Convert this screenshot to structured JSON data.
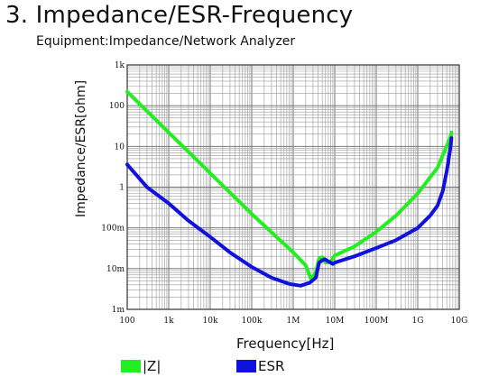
{
  "title": "3. Impedance/ESR-Frequency",
  "subtitle": "Equipment:Impedance/Network Analyzer",
  "chart_data": {
    "type": "line",
    "xlabel": "Frequency[Hz]",
    "ylabel": "Impedance/ESR[ohm]",
    "x_scale": "log",
    "y_scale": "log",
    "xlim": [
      100,
      10000000000
    ],
    "ylim": [
      0.001,
      1000
    ],
    "grid": true,
    "x_ticks": [
      {
        "value": 100,
        "label": "100"
      },
      {
        "value": 1000,
        "label": "1k"
      },
      {
        "value": 10000,
        "label": "10k"
      },
      {
        "value": 100000,
        "label": "100k"
      },
      {
        "value": 1000000,
        "label": "1M"
      },
      {
        "value": 10000000,
        "label": "10M"
      },
      {
        "value": 100000000,
        "label": "100M"
      },
      {
        "value": 1000000000,
        "label": "1G"
      },
      {
        "value": 10000000000,
        "label": "10G"
      }
    ],
    "y_ticks": [
      {
        "value": 0.001,
        "label": "1m"
      },
      {
        "value": 0.01,
        "label": "10m"
      },
      {
        "value": 0.1,
        "label": "100m"
      },
      {
        "value": 1,
        "label": "1"
      },
      {
        "value": 10,
        "label": "10"
      },
      {
        "value": 100,
        "label": "100"
      },
      {
        "value": 1000,
        "label": "1k"
      }
    ],
    "legend_position": "bottom",
    "series": [
      {
        "name": "|Z|",
        "color": "#22ee22",
        "points": [
          [
            100,
            220
          ],
          [
            1000,
            22
          ],
          [
            10000,
            2.2
          ],
          [
            100000,
            0.22
          ],
          [
            1000000,
            0.025
          ],
          [
            2000000,
            0.012
          ],
          [
            2700000,
            0.0055
          ],
          [
            3500000,
            0.008
          ],
          [
            4200000,
            0.018
          ],
          [
            5000000,
            0.019
          ],
          [
            6000000,
            0.014
          ],
          [
            8000000,
            0.015
          ],
          [
            10000000,
            0.021
          ],
          [
            30000000,
            0.035
          ],
          [
            100000000,
            0.08
          ],
          [
            300000000,
            0.2
          ],
          [
            1000000000,
            0.7
          ],
          [
            3000000000,
            3
          ],
          [
            6000000000,
            16
          ],
          [
            6500000000,
            22
          ]
        ]
      },
      {
        "name": "ESR",
        "color": "#1111dd",
        "points": [
          [
            100,
            3.6
          ],
          [
            300,
            1.0
          ],
          [
            1000,
            0.4
          ],
          [
            3000,
            0.15
          ],
          [
            10000,
            0.06
          ],
          [
            30000,
            0.025
          ],
          [
            100000,
            0.011
          ],
          [
            300000,
            0.006
          ],
          [
            800000,
            0.0042
          ],
          [
            1500000,
            0.0038
          ],
          [
            2500000,
            0.0045
          ],
          [
            3500000,
            0.006
          ],
          [
            4200000,
            0.014
          ],
          [
            5000000,
            0.016
          ],
          [
            5800000,
            0.017
          ],
          [
            7000000,
            0.015
          ],
          [
            9000000,
            0.013
          ],
          [
            10000000,
            0.014
          ],
          [
            30000000,
            0.02
          ],
          [
            100000000,
            0.032
          ],
          [
            300000000,
            0.05
          ],
          [
            1000000000,
            0.1
          ],
          [
            2000000000,
            0.2
          ],
          [
            3000000000,
            0.35
          ],
          [
            4000000000,
            0.8
          ],
          [
            5000000000,
            2.5
          ],
          [
            6000000000,
            8
          ],
          [
            6500000000,
            16
          ]
        ]
      }
    ]
  }
}
